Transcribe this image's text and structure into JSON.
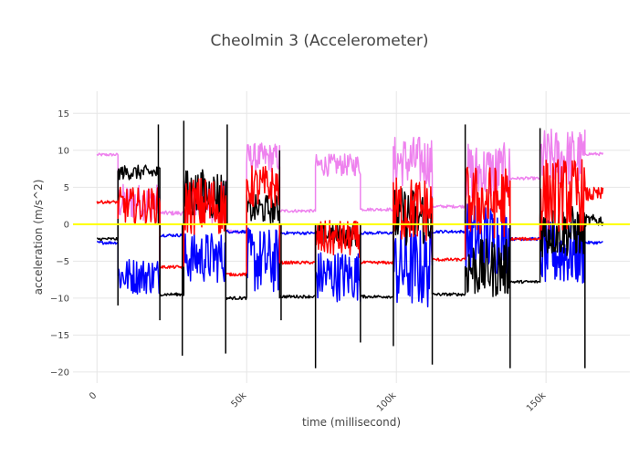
{
  "chart_data": {
    "type": "line",
    "title": "Cheolmin 3 (Accelerometer)",
    "xlabel": "time (millisecond)",
    "ylabel": "acceleration (m/s^2)",
    "xlim": [
      -8000,
      178000
    ],
    "ylim": [
      -21.5,
      18
    ],
    "x_ticks": [
      0,
      50000,
      100000,
      150000
    ],
    "x_tick_labels": [
      "0",
      "50k",
      "100k",
      "150k"
    ],
    "y_ticks": [
      -20,
      -15,
      -10,
      -5,
      0,
      5,
      10,
      15
    ],
    "y_tick_labels": [
      "−20",
      "−15",
      "−10",
      "−5",
      "0",
      "5",
      "10",
      "15"
    ],
    "grid": true,
    "legend": "none",
    "series": [
      {
        "color": "#ee82ee",
        "segments": [
          {
            "x0": 0,
            "x1": 7000,
            "mean": 9.4,
            "noise": 0.2
          },
          {
            "x0": 7000,
            "x1": 21000,
            "mean": 3.0,
            "noise": 2.5
          },
          {
            "x0": 21000,
            "x1": 29000,
            "mean": 1.5,
            "noise": 0.3
          },
          {
            "x0": 29000,
            "x1": 43000,
            "mean": 3.0,
            "noise": 3.0
          },
          {
            "x0": 43000,
            "x1": 50000,
            "mean": -1.0,
            "noise": 0.3
          },
          {
            "x0": 50000,
            "x1": 61000,
            "mean": 9.0,
            "noise": 2.0
          },
          {
            "x0": 61000,
            "x1": 73000,
            "mean": 1.8,
            "noise": 0.2
          },
          {
            "x0": 73000,
            "x1": 88000,
            "mean": 8.0,
            "noise": 1.5
          },
          {
            "x0": 88000,
            "x1": 99000,
            "mean": 2.0,
            "noise": 0.2
          },
          {
            "x0": 99000,
            "x1": 112000,
            "mean": 8.5,
            "noise": 3.5
          },
          {
            "x0": 112000,
            "x1": 123000,
            "mean": 2.4,
            "noise": 0.2
          },
          {
            "x0": 123000,
            "x1": 138000,
            "mean": 7.0,
            "noise": 4.0
          },
          {
            "x0": 138000,
            "x1": 148000,
            "mean": 6.2,
            "noise": 0.2
          },
          {
            "x0": 148000,
            "x1": 163000,
            "mean": 9.0,
            "noise": 4.0
          },
          {
            "x0": 163000,
            "x1": 169000,
            "mean": 9.5,
            "noise": 0.2
          }
        ]
      },
      {
        "color": "#0000ff",
        "segments": [
          {
            "x0": 0,
            "x1": 7000,
            "mean": -2.5,
            "noise": 0.2
          },
          {
            "x0": 7000,
            "x1": 21000,
            "mean": -7.0,
            "noise": 2.5
          },
          {
            "x0": 21000,
            "x1": 29000,
            "mean": -1.5,
            "noise": 0.2
          },
          {
            "x0": 29000,
            "x1": 43000,
            "mean": -4.5,
            "noise": 3.5
          },
          {
            "x0": 43000,
            "x1": 50000,
            "mean": -1.0,
            "noise": 0.2
          },
          {
            "x0": 50000,
            "x1": 61000,
            "mean": -5.0,
            "noise": 4.5
          },
          {
            "x0": 61000,
            "x1": 73000,
            "mean": -1.2,
            "noise": 0.2
          },
          {
            "x0": 73000,
            "x1": 88000,
            "mean": -7.0,
            "noise": 3.5
          },
          {
            "x0": 88000,
            "x1": 99000,
            "mean": -1.2,
            "noise": 0.2
          },
          {
            "x0": 99000,
            "x1": 112000,
            "mean": -6.0,
            "noise": 5.5
          },
          {
            "x0": 112000,
            "x1": 123000,
            "mean": -1.0,
            "noise": 0.2
          },
          {
            "x0": 123000,
            "x1": 138000,
            "mean": -2.0,
            "noise": 5.0
          },
          {
            "x0": 138000,
            "x1": 148000,
            "mean": -2.0,
            "noise": 0.2
          },
          {
            "x0": 148000,
            "x1": 163000,
            "mean": -4.0,
            "noise": 4.5
          },
          {
            "x0": 163000,
            "x1": 169000,
            "mean": -2.5,
            "noise": 0.2
          }
        ]
      },
      {
        "color": "#000000",
        "segments": [
          {
            "x0": 0,
            "x1": 7000,
            "mean": -2.0,
            "noise": 0.2
          },
          {
            "x0": 7000,
            "x1": 21000,
            "mean": 7.0,
            "noise": 1.0
          },
          {
            "x0": 21000,
            "x1": 29000,
            "mean": -9.5,
            "noise": 0.2
          },
          {
            "x0": 29000,
            "x1": 43000,
            "mean": 4.0,
            "noise": 3.5
          },
          {
            "x0": 43000,
            "x1": 50000,
            "mean": -10.0,
            "noise": 0.2
          },
          {
            "x0": 50000,
            "x1": 61000,
            "mean": 2.0,
            "noise": 2.0
          },
          {
            "x0": 61000,
            "x1": 73000,
            "mean": -9.8,
            "noise": 0.2
          },
          {
            "x0": 73000,
            "x1": 88000,
            "mean": -1.5,
            "noise": 1.5
          },
          {
            "x0": 88000,
            "x1": 99000,
            "mean": -9.8,
            "noise": 0.2
          },
          {
            "x0": 99000,
            "x1": 112000,
            "mean": 1.0,
            "noise": 4.0
          },
          {
            "x0": 112000,
            "x1": 123000,
            "mean": -9.5,
            "noise": 0.2
          },
          {
            "x0": 123000,
            "x1": 138000,
            "mean": -6.0,
            "noise": 4.0
          },
          {
            "x0": 138000,
            "x1": 148000,
            "mean": -7.8,
            "noise": 0.2
          },
          {
            "x0": 148000,
            "x1": 163000,
            "mean": -1.0,
            "noise": 3.5
          },
          {
            "x0": 163000,
            "x1": 169000,
            "mean": 0.5,
            "noise": 0.8
          }
        ]
      },
      {
        "color": "#ff0000",
        "segments": [
          {
            "x0": 0,
            "x1": 7000,
            "mean": 3.0,
            "noise": 0.2
          },
          {
            "x0": 7000,
            "x1": 21000,
            "mean": 2.5,
            "noise": 2.5
          },
          {
            "x0": 21000,
            "x1": 29000,
            "mean": -5.8,
            "noise": 0.2
          },
          {
            "x0": 29000,
            "x1": 43000,
            "mean": 2.5,
            "noise": 4.0
          },
          {
            "x0": 43000,
            "x1": 50000,
            "mean": -6.8,
            "noise": 0.2
          },
          {
            "x0": 50000,
            "x1": 61000,
            "mean": 5.0,
            "noise": 3.0
          },
          {
            "x0": 61000,
            "x1": 73000,
            "mean": -5.2,
            "noise": 0.2
          },
          {
            "x0": 73000,
            "x1": 88000,
            "mean": -2.0,
            "noise": 2.5
          },
          {
            "x0": 88000,
            "x1": 99000,
            "mean": -5.2,
            "noise": 0.2
          },
          {
            "x0": 99000,
            "x1": 112000,
            "mean": 2.0,
            "noise": 4.5
          },
          {
            "x0": 112000,
            "x1": 123000,
            "mean": -4.8,
            "noise": 0.2
          },
          {
            "x0": 123000,
            "x1": 138000,
            "mean": 3.0,
            "noise": 5.0
          },
          {
            "x0": 138000,
            "x1": 148000,
            "mean": -2.0,
            "noise": 0.2
          },
          {
            "x0": 148000,
            "x1": 163000,
            "mean": 4.0,
            "noise": 5.0
          },
          {
            "x0": 163000,
            "x1": 169000,
            "mean": 4.0,
            "noise": 1.0
          }
        ]
      }
    ],
    "reference_line": {
      "y": 0,
      "color": "#ffff00"
    },
    "spikes": [
      {
        "x": 7000,
        "y": -11.0
      },
      {
        "x": 20500,
        "y": 13.5
      },
      {
        "x": 21000,
        "y": -13.0
      },
      {
        "x": 28500,
        "y": -17.8
      },
      {
        "x": 29000,
        "y": 14.0
      },
      {
        "x": 43000,
        "y": -17.5
      },
      {
        "x": 43500,
        "y": 13.5
      },
      {
        "x": 61000,
        "y": 10.0
      },
      {
        "x": 61500,
        "y": -13.0
      },
      {
        "x": 73000,
        "y": -19.5
      },
      {
        "x": 88000,
        "y": -16.0
      },
      {
        "x": 99000,
        "y": -16.5
      },
      {
        "x": 112000,
        "y": -19.0
      },
      {
        "x": 123000,
        "y": 13.5
      },
      {
        "x": 138000,
        "y": -19.5
      },
      {
        "x": 148000,
        "y": 13.0
      },
      {
        "x": 163000,
        "y": -19.5
      }
    ]
  }
}
